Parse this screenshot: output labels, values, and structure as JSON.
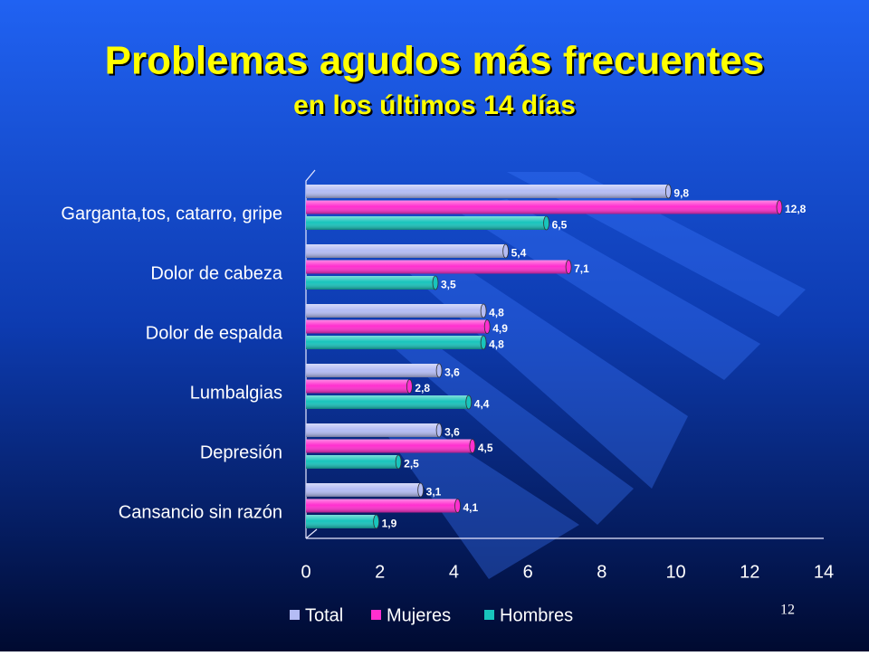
{
  "chart_data": {
    "type": "bar",
    "orientation": "horizontal",
    "title": "Problemas agudos más frecuentes",
    "subtitle": "en los últimos 14 días",
    "categories": [
      "Garganta,tos, catarro, gripe",
      "Dolor de cabeza",
      "Dolor de espalda",
      "Lumbalgias",
      "Depresión",
      "Cansancio sin razón"
    ],
    "series": [
      {
        "name": "Total",
        "color": "#b4bcf4",
        "values": [
          9.8,
          5.4,
          4.8,
          3.6,
          3.6,
          3.1
        ],
        "value_labels": [
          "9,8",
          "5,4",
          "4,8",
          "3,6",
          "3,6",
          "3,1"
        ]
      },
      {
        "name": "Mujeres",
        "color": "#ff2fcf",
        "values": [
          12.8,
          7.1,
          4.9,
          2.8,
          4.5,
          4.1
        ],
        "value_labels": [
          "12,8",
          "7,1",
          "4,9",
          "2,8",
          "4,5",
          "4,1"
        ]
      },
      {
        "name": "Hombres",
        "color": "#18c4bc",
        "values": [
          6.5,
          3.5,
          4.8,
          4.4,
          2.5,
          1.9
        ],
        "value_labels": [
          "6,5",
          "3,5",
          "4,8",
          "4,4",
          "2,5",
          "1,9"
        ]
      }
    ],
    "xlim": [
      0,
      14
    ],
    "xticks": [
      0,
      2,
      4,
      6,
      8,
      10,
      12,
      14
    ],
    "grid": false,
    "legend": "bottom"
  },
  "slide_number": "12"
}
